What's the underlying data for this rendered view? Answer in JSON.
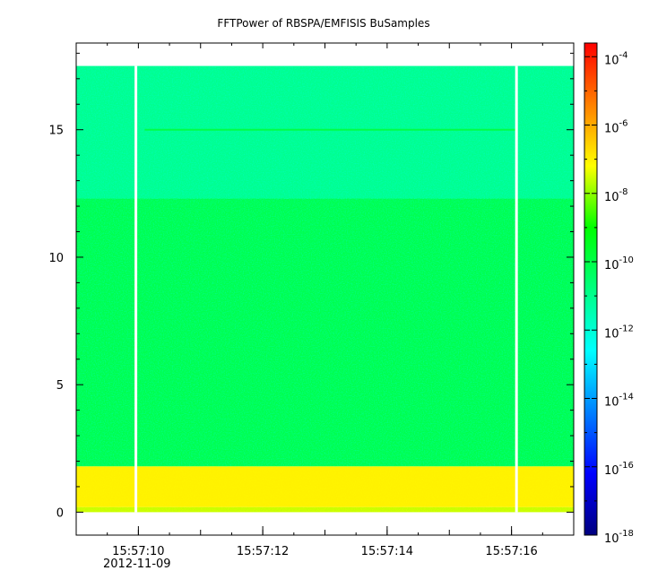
{
  "chart_data": {
    "type": "heatmap",
    "title": "FFTPower of RBSPA/EMFISIS  BuSamples",
    "xlabel": "",
    "ylabel": "",
    "x_ticks": [
      "15:57:10",
      "15:57:12",
      "15:57:14",
      "15:57:16"
    ],
    "x_tick_values_s": [
      10,
      12,
      14,
      16
    ],
    "date_label": "2012-11-09",
    "xlim_s": [
      9.0,
      17.0
    ],
    "y_ticks": [
      "0",
      "5",
      "10",
      "15"
    ],
    "y_tick_values": [
      0,
      5,
      10,
      15
    ],
    "ylim": [
      -0.9,
      18.4
    ],
    "data_ylim": [
      0,
      17.5
    ],
    "bands": [
      {
        "y": [
          0.0,
          0.2
        ],
        "level": -7.6
      },
      {
        "y": [
          0.2,
          1.8
        ],
        "level": -7.0
      },
      {
        "y": [
          1.8,
          12.3
        ],
        "level": -10.1
      },
      {
        "y": [
          12.3,
          17.5
        ],
        "level": -11.0
      }
    ],
    "line_feature": {
      "y": 15.0,
      "x_s": [
        10.1,
        16.1
      ],
      "level": -10.0
    },
    "gaps_s": [
      9.96,
      16.08
    ],
    "colorbar": {
      "log_scale": true,
      "range_exp": [
        -18,
        -3.6
      ],
      "tick_exponents": [
        "-4",
        "-6",
        "-8",
        "-10",
        "-12",
        "-14",
        "-16",
        "-18"
      ],
      "tick_exp_values": [
        -4,
        -6,
        -8,
        -10,
        -12,
        -14,
        -16,
        -18
      ],
      "base_label": "10",
      "colormap": [
        "#00007f",
        "#0000ff",
        "#0080ff",
        "#00ffff",
        "#00ff80",
        "#00ff00",
        "#ffff00",
        "#ff8000",
        "#ff0000"
      ]
    }
  }
}
